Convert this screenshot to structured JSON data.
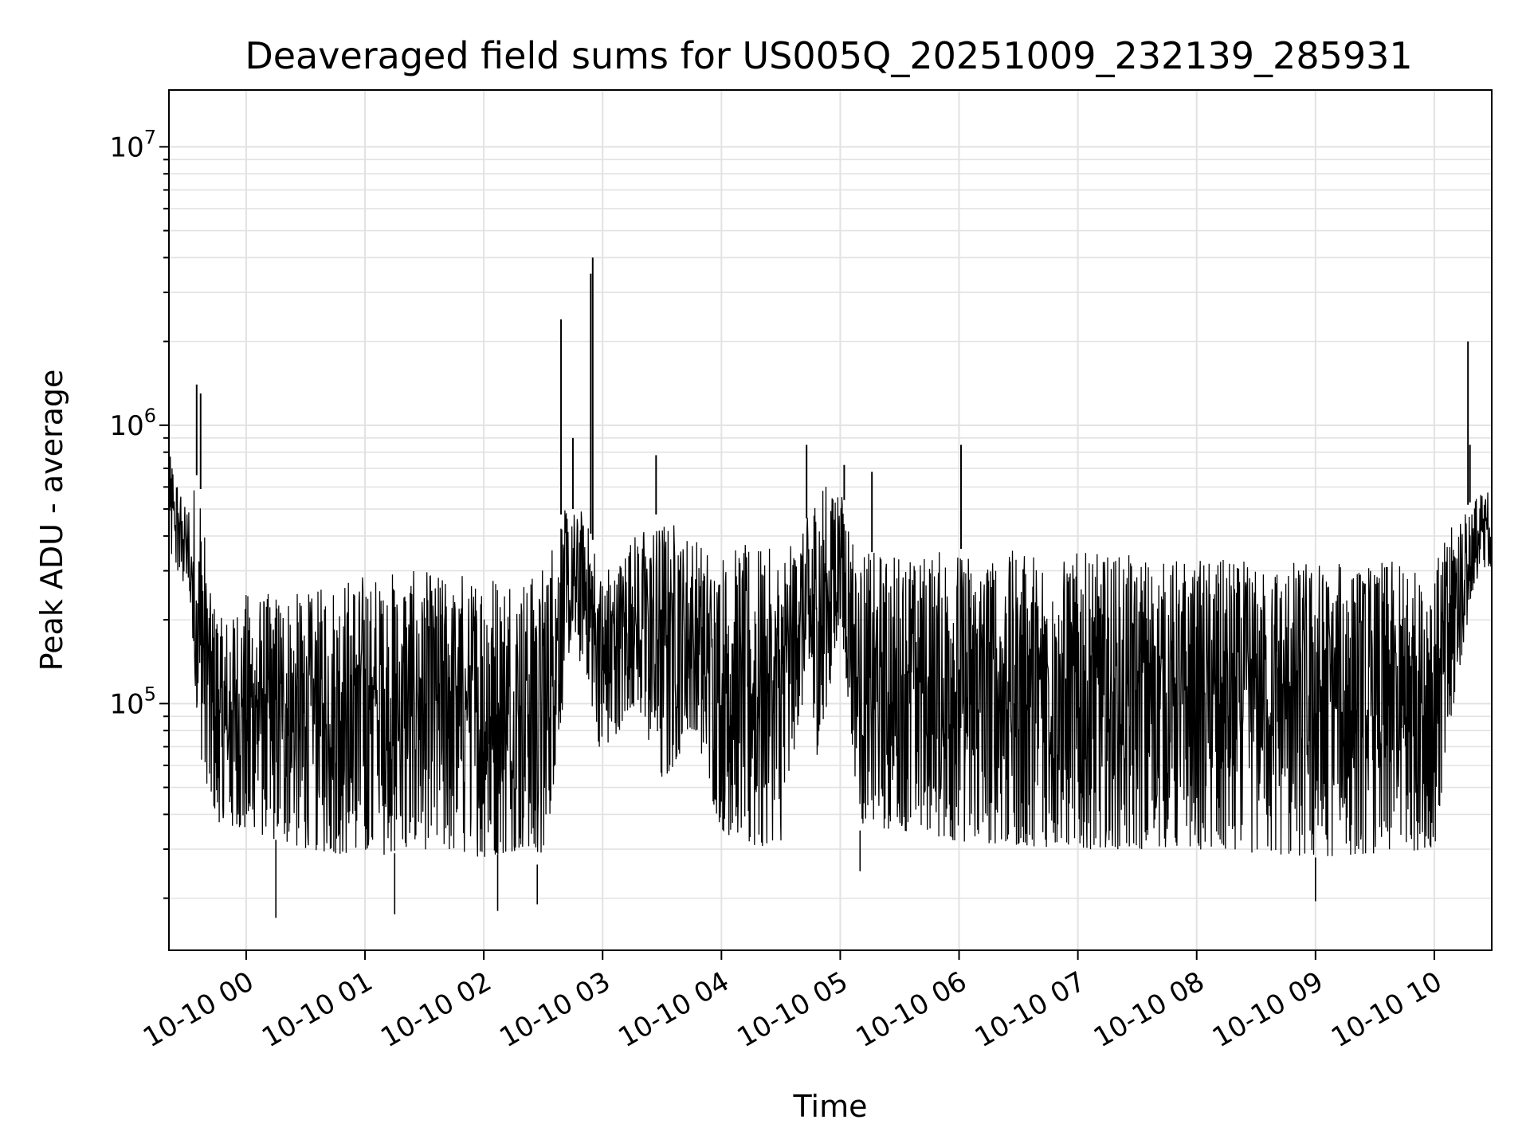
{
  "chart_data": {
    "type": "line",
    "title": "Deaveraged field sums for US005Q_20251009_232139_285931",
    "xlabel": "Time",
    "ylabel": "Peak ADU - average",
    "yscale": "log",
    "ylim": [
      13000,
      16000000
    ],
    "xlim": [
      "2025-10-09 23:21",
      "2025-10-10 10:29"
    ],
    "grid": true,
    "line_color": "#000000",
    "x_ticks": [
      "10-10 00",
      "10-10 01",
      "10-10 02",
      "10-10 03",
      "10-10 04",
      "10-10 05",
      "10-10 06",
      "10-10 07",
      "10-10 08",
      "10-10 09",
      "10-10 10"
    ],
    "y_ticks": [
      {
        "value": 100000,
        "base": "10",
        "exp": "5"
      },
      {
        "value": 1000000,
        "base": "10",
        "exp": "6"
      },
      {
        "value": 10000000,
        "base": "10",
        "exp": "7"
      }
    ],
    "envelope": {
      "x": [
        "2025-10-09 23:21",
        "2025-10-09 23:30",
        "2025-10-09 23:36",
        "2025-10-09 23:42",
        "2025-10-09 23:48",
        "2025-10-10 00:00",
        "2025-10-10 00:30",
        "2025-10-10 01:00",
        "2025-10-10 01:30",
        "2025-10-10 02:00",
        "2025-10-10 02:20",
        "2025-10-10 02:30",
        "2025-10-10 02:40",
        "2025-10-10 02:50",
        "2025-10-10 03:00",
        "2025-10-10 03:15",
        "2025-10-10 03:30",
        "2025-10-10 03:45",
        "2025-10-10 04:00",
        "2025-10-10 04:15",
        "2025-10-10 04:30",
        "2025-10-10 04:40",
        "2025-10-10 04:50",
        "2025-10-10 05:00",
        "2025-10-10 05:10",
        "2025-10-10 05:30",
        "2025-10-10 06:00",
        "2025-10-10 07:00",
        "2025-10-10 08:00",
        "2025-10-10 09:00",
        "2025-10-10 10:00",
        "2025-10-10 10:10",
        "2025-10-10 10:20",
        "2025-10-10 10:29"
      ],
      "upper": [
        800000,
        500000,
        700000,
        250000,
        200000,
        250000,
        250000,
        300000,
        300000,
        300000,
        300000,
        320000,
        500000,
        500000,
        300000,
        400000,
        500000,
        400000,
        350000,
        380000,
        350000,
        400000,
        650000,
        600000,
        350000,
        350000,
        360000,
        350000,
        330000,
        330000,
        320000,
        450000,
        550000,
        600000
      ],
      "lower": [
        350000,
        250000,
        70000,
        45000,
        35000,
        35000,
        30000,
        28000,
        30000,
        28000,
        30000,
        25000,
        100000,
        150000,
        60000,
        100000,
        50000,
        80000,
        35000,
        30000,
        30000,
        100000,
        60000,
        200000,
        35000,
        35000,
        32000,
        30000,
        30000,
        28000,
        30000,
        100000,
        250000,
        300000
      ]
    },
    "spikes": [
      {
        "x": "2025-10-09 23:35",
        "y": 1400000
      },
      {
        "x": "2025-10-09 23:37",
        "y": 1300000
      },
      {
        "x": "2025-10-10 02:39",
        "y": 2400000
      },
      {
        "x": "2025-10-10 02:45",
        "y": 900000
      },
      {
        "x": "2025-10-10 02:54",
        "y": 3500000
      },
      {
        "x": "2025-10-10 02:55",
        "y": 4000000
      },
      {
        "x": "2025-10-10 03:27",
        "y": 780000
      },
      {
        "x": "2025-10-10 04:43",
        "y": 850000
      },
      {
        "x": "2025-10-10 05:02",
        "y": 720000
      },
      {
        "x": "2025-10-10 05:16",
        "y": 680000
      },
      {
        "x": "2025-10-10 06:01",
        "y": 850000
      },
      {
        "x": "2025-10-10 10:17",
        "y": 2000000
      },
      {
        "x": "2025-10-10 10:18",
        "y": 850000
      }
    ],
    "dips": [
      {
        "x": "2025-10-10 00:15",
        "y": 17000
      },
      {
        "x": "2025-10-10 01:15",
        "y": 17500
      },
      {
        "x": "2025-10-10 02:07",
        "y": 18000
      },
      {
        "x": "2025-10-10 02:27",
        "y": 19000
      },
      {
        "x": "2025-10-10 05:10",
        "y": 25000
      },
      {
        "x": "2025-10-10 09:00",
        "y": 19500
      }
    ]
  }
}
